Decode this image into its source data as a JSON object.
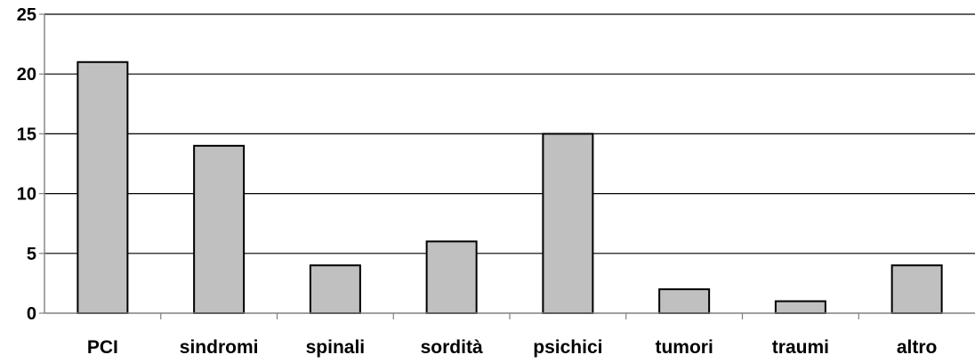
{
  "chart_data": {
    "type": "bar",
    "title": "",
    "xlabel": "",
    "ylabel": "",
    "categories": [
      "PCI",
      "sindromi",
      "spinali",
      "sordità",
      "psichici",
      "tumori",
      "traumi",
      "altro"
    ],
    "values": [
      21,
      14,
      4,
      6,
      15,
      2,
      1,
      4
    ],
    "ylim": [
      0,
      25
    ],
    "yticks": [
      "0",
      "5",
      "10",
      "15",
      "20",
      "25"
    ],
    "grid": true,
    "legend": "none",
    "colors": {
      "bar_fill": "#c0c0c0",
      "bar_stroke": "#000000",
      "grid": "#000000",
      "axis": "#808080"
    }
  }
}
